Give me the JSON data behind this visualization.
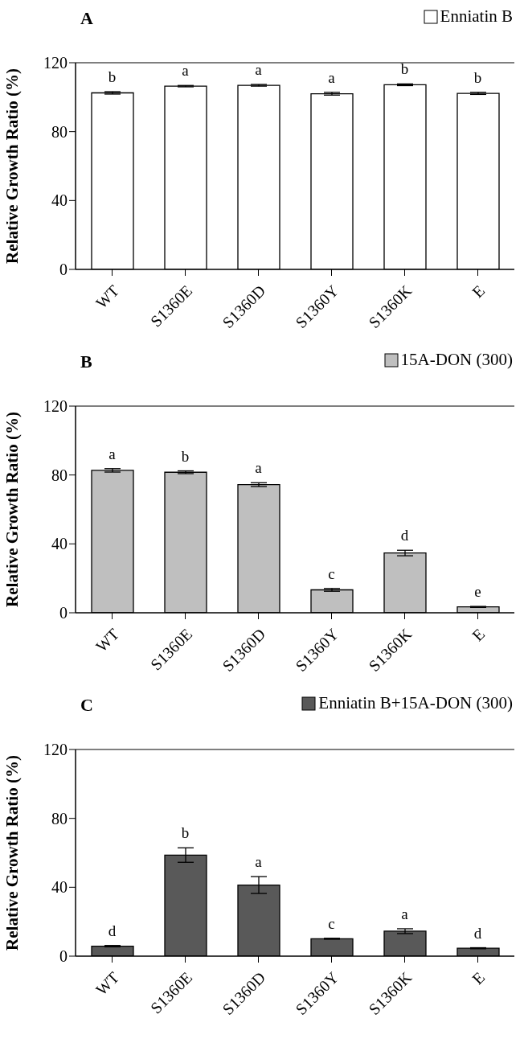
{
  "chart_data": [
    {
      "type": "bar",
      "title": "A",
      "ylabel": "Relative Growth Ratio (%)",
      "categories": [
        "WT",
        "S1360E",
        "S1360D",
        "S1360Y",
        "S1360K",
        "E"
      ],
      "series": [
        {
          "name": "Enniatin B",
          "color": "#ffffff",
          "values": [
            102.5,
            106.4,
            106.9,
            102.0,
            107.2,
            102.2
          ],
          "errors": [
            0.7,
            0.4,
            0.5,
            0.8,
            0.5,
            0.6
          ]
        }
      ],
      "ylim": [
        0,
        120
      ],
      "yticks": [
        0,
        40,
        80,
        120
      ],
      "grid": false,
      "legend": "top right",
      "annotations": [
        "b",
        "a",
        "a",
        "a",
        "b",
        "b"
      ]
    },
    {
      "type": "bar",
      "title": "B",
      "ylabel": "Relative Growth Ratio (%)",
      "categories": [
        "WT",
        "S1360E",
        "S1360D",
        "S1360Y",
        "S1360K",
        "E"
      ],
      "series": [
        {
          "name": "15A-DON (300)",
          "color": "#bfbfbf",
          "values": [
            82.7,
            81.6,
            74.4,
            13.3,
            34.7,
            3.4
          ],
          "errors": [
            1.0,
            0.8,
            1.1,
            0.8,
            1.6,
            0.3
          ]
        }
      ],
      "ylim": [
        0,
        120
      ],
      "yticks": [
        0,
        40,
        80,
        120
      ],
      "grid": false,
      "legend": "top right",
      "annotations": [
        "a",
        "b",
        "a",
        "c",
        "d",
        "e"
      ]
    },
    {
      "type": "bar",
      "title": "C",
      "ylabel": "Relative Growth Ratio (%)",
      "categories": [
        "WT",
        "S1360E",
        "S1360D",
        "S1360Y",
        "S1360K",
        "E"
      ],
      "series": [
        {
          "name": "Enniatin B+15A-DON (300)",
          "color": "#595959",
          "values": [
            5.8,
            58.7,
            41.3,
            10.1,
            14.5,
            4.6
          ],
          "errors": [
            0.4,
            4.2,
            4.9,
            0.3,
            1.4,
            0.3
          ]
        }
      ],
      "ylim": [
        0,
        120
      ],
      "yticks": [
        0,
        40,
        80,
        120
      ],
      "grid": false,
      "legend": "top right",
      "annotations": [
        "d",
        "b",
        "a",
        "c",
        "a",
        "d"
      ]
    }
  ]
}
